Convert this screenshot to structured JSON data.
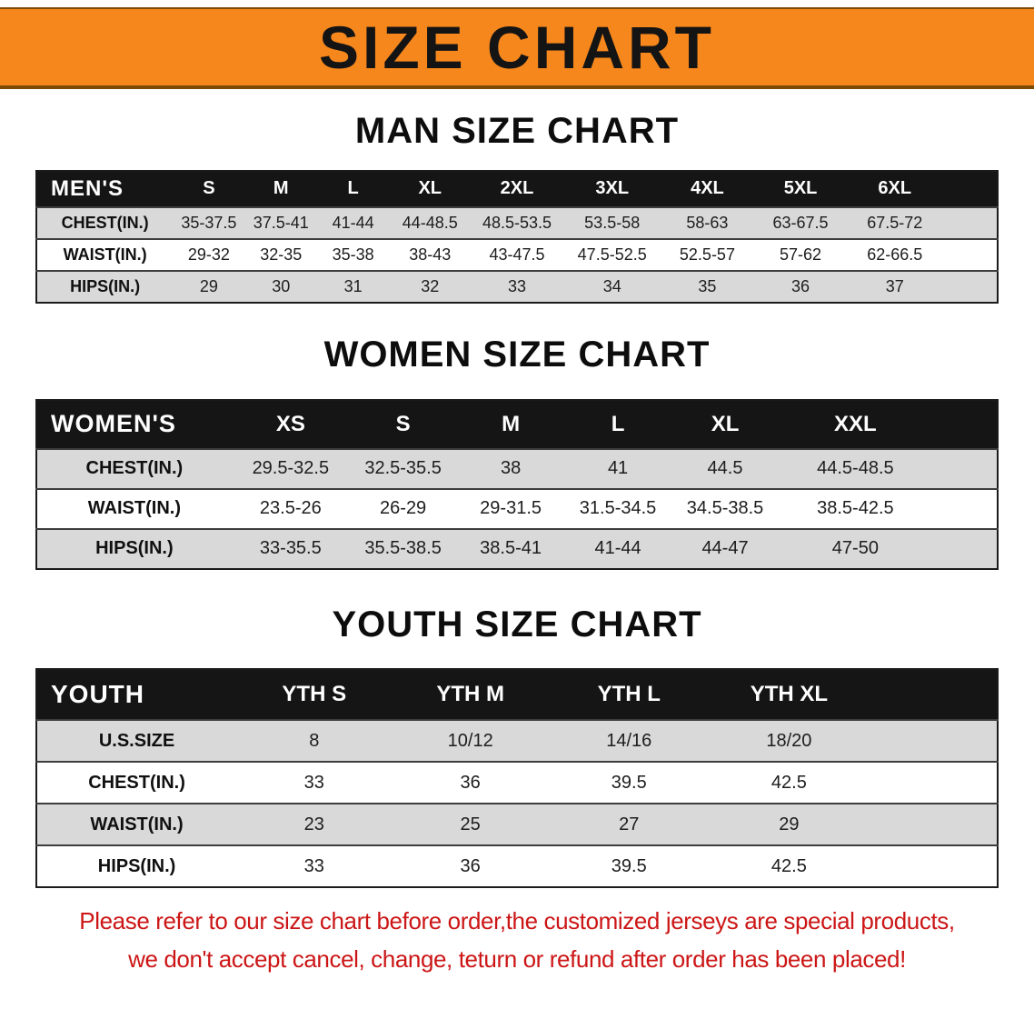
{
  "banner": {
    "title": "SIZE CHART"
  },
  "colors": {
    "banner_bg": "#f6871d",
    "banner_border": "#7d4a05",
    "header_bg": "#151515",
    "header_text": "#ffffff",
    "row_bg": "#ffffff",
    "row_alt_bg": "#d9d9d9",
    "disclaimer_text": "#cc1616"
  },
  "tables": [
    {
      "id": "men",
      "heading": "MAN SIZE CHART",
      "header": [
        "MEN'S",
        "S",
        "M",
        "L",
        "XL",
        "2XL",
        "3XL",
        "4XL",
        "5XL",
        "6XL"
      ],
      "rows": [
        {
          "label": "CHEST(IN.)",
          "values": [
            "35-37.5",
            "37.5-41",
            "41-44",
            "44-48.5",
            "48.5-53.5",
            "53.5-58",
            "58-63",
            "63-67.5",
            "67.5-72"
          ]
        },
        {
          "label": "WAIST(IN.)",
          "values": [
            "29-32",
            "32-35",
            "35-38",
            "38-43",
            "43-47.5",
            "47.5-52.5",
            "52.5-57",
            "57-62",
            "62-66.5"
          ]
        },
        {
          "label": "HIPS(IN.)",
          "values": [
            "29",
            "30",
            "31",
            "32",
            "33",
            "34",
            "35",
            "36",
            "37"
          ]
        }
      ]
    },
    {
      "id": "women",
      "heading": "WOMEN SIZE CHART",
      "header": [
        "WOMEN'S",
        "XS",
        "S",
        "M",
        "L",
        "XL",
        "XXL"
      ],
      "rows": [
        {
          "label": "CHEST(IN.)",
          "values": [
            "29.5-32.5",
            "32.5-35.5",
            "38",
            "41",
            "44.5",
            "44.5-48.5"
          ]
        },
        {
          "label": "WAIST(IN.)",
          "values": [
            "23.5-26",
            "26-29",
            "29-31.5",
            "31.5-34.5",
            "34.5-38.5",
            "38.5-42.5"
          ]
        },
        {
          "label": "HIPS(IN.)",
          "values": [
            "33-35.5",
            "35.5-38.5",
            "38.5-41",
            "41-44",
            "44-47",
            "47-50"
          ]
        }
      ]
    },
    {
      "id": "youth",
      "heading": "YOUTH SIZE CHART",
      "header": [
        "YOUTH",
        "YTH S",
        "YTH M",
        "YTH L",
        "YTH XL"
      ],
      "rows": [
        {
          "label": "U.S.SIZE",
          "values": [
            "8",
            "10/12",
            "14/16",
            "18/20"
          ]
        },
        {
          "label": "CHEST(IN.)",
          "values": [
            "33",
            "36",
            "39.5",
            "42.5"
          ]
        },
        {
          "label": "WAIST(IN.)",
          "values": [
            "23",
            "25",
            "27",
            "29"
          ]
        },
        {
          "label": "HIPS(IN.)",
          "values": [
            "33",
            "36",
            "39.5",
            "42.5"
          ]
        }
      ]
    }
  ],
  "disclaimer": {
    "line1": "Please refer to our size chart before order,the customized jerseys are special products,",
    "line2": "we don't accept cancel, change, teturn or refund after order has been placed!"
  }
}
